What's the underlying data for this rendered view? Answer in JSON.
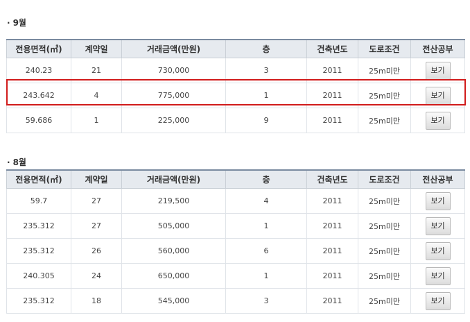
{
  "columns": [
    "전용면적(㎡)",
    "계약일",
    "거래금액(만원)",
    "층",
    "건축년도",
    "도로조건",
    "전산공부"
  ],
  "sections": [
    {
      "title": "9월",
      "rows": [
        {
          "area": "240.23",
          "day": "21",
          "price": "730,000",
          "floor": "3",
          "year": "2011",
          "road": "25m미만",
          "btn": "보기"
        },
        {
          "area": "243.642",
          "day": "4",
          "price": "775,000",
          "floor": "1",
          "year": "2011",
          "road": "25m미만",
          "btn": "보기"
        },
        {
          "area": "59.686",
          "day": "1",
          "price": "225,000",
          "floor": "9",
          "year": "2011",
          "road": "25m미만",
          "btn": "보기"
        }
      ]
    },
    {
      "title": "8월",
      "rows": [
        {
          "area": "59.7",
          "day": "27",
          "price": "219,500",
          "floor": "4",
          "year": "2011",
          "road": "25m미만",
          "btn": "보기"
        },
        {
          "area": "235.312",
          "day": "27",
          "price": "505,000",
          "floor": "1",
          "year": "2011",
          "road": "25m미만",
          "btn": "보기"
        },
        {
          "area": "235.312",
          "day": "26",
          "price": "560,000",
          "floor": "6",
          "year": "2011",
          "road": "25m미만",
          "btn": "보기"
        },
        {
          "area": "240.305",
          "day": "24",
          "price": "650,000",
          "floor": "1",
          "year": "2011",
          "road": "25m미만",
          "btn": "보기"
        },
        {
          "area": "235.312",
          "day": "18",
          "price": "545,000",
          "floor": "3",
          "year": "2011",
          "road": "25m미만",
          "btn": "보기"
        }
      ]
    }
  ],
  "highlight_color": "#d11b1b"
}
